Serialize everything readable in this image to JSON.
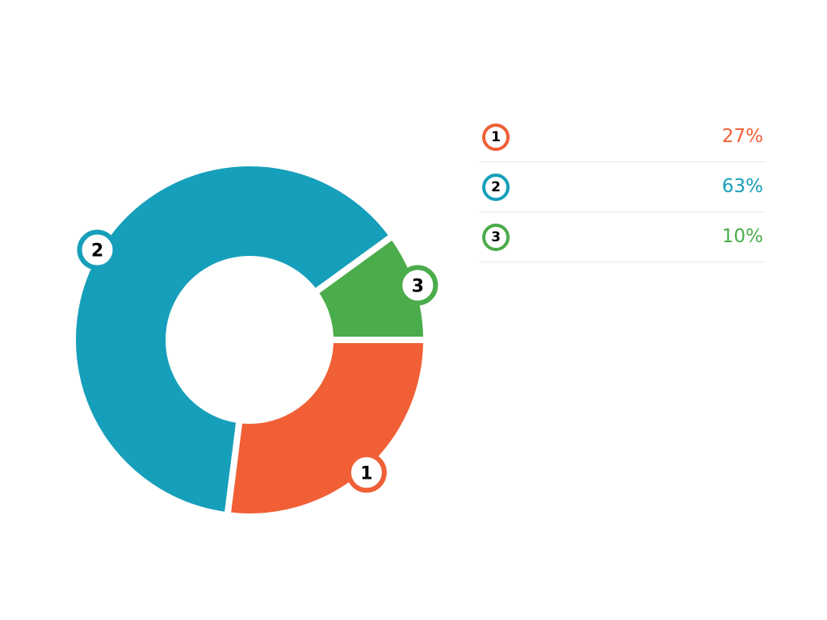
{
  "chart_data": {
    "type": "pie",
    "style": "donut",
    "slices": [
      {
        "label": "1",
        "value": 27,
        "value_text": "27%",
        "color": "#f05f35"
      },
      {
        "label": "2",
        "value": 63,
        "value_text": "63%",
        "color": "#169fba"
      },
      {
        "label": "3",
        "value": 10,
        "value_text": "10%",
        "color": "#4aac4a"
      }
    ],
    "legend_position": "right"
  },
  "legend": {
    "items": [
      {
        "number": "1",
        "value": "27%"
      },
      {
        "number": "2",
        "value": "63%"
      },
      {
        "number": "3",
        "value": "10%"
      }
    ]
  }
}
